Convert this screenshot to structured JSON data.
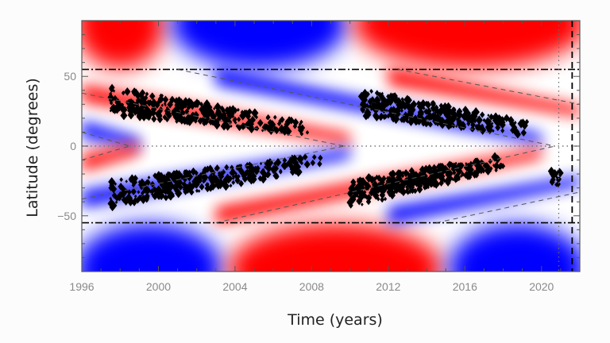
{
  "chart_data": {
    "type": "heatmap",
    "title": "",
    "xlabel": "Time (years)",
    "ylabel": "Latitude (degrees)",
    "xlim": [
      1996,
      2022
    ],
    "ylim": [
      -90,
      90
    ],
    "x_ticks": [
      1996,
      2000,
      2004,
      2008,
      2012,
      2016,
      2020
    ],
    "y_ticks": [
      50,
      0,
      -50
    ],
    "y_tick_labels": [
      "50",
      "0",
      "−50"
    ],
    "colormap": {
      "positive": "#ff0000",
      "zero": "#ffffff",
      "negative": "#0000ff"
    },
    "background_field": {
      "description": "Red/blue toroidal-field-like bands; polar caps above/below ±55°, drifting equatorward wings between",
      "north_polar_cap": [
        {
          "from": 1996,
          "to": 2000,
          "sign": "positive"
        },
        {
          "from": 2001,
          "to": 2009.5,
          "sign": "negative"
        },
        {
          "from": 2010.5,
          "to": 2022,
          "sign": "positive"
        }
      ],
      "south_polar_cap": [
        {
          "from": 1996,
          "to": 2003,
          "sign": "negative"
        },
        {
          "from": 2004,
          "to": 2014.5,
          "sign": "positive"
        },
        {
          "from": 2015.5,
          "to": 2022,
          "sign": "negative"
        }
      ],
      "bands": [
        {
          "hemisphere": "north",
          "sign": "positive",
          "start": [
            1996,
            38
          ],
          "end": [
            2010,
            5
          ]
        },
        {
          "hemisphere": "north",
          "sign": "negative",
          "start": [
            2003,
            50
          ],
          "end": [
            2020,
            5
          ]
        },
        {
          "hemisphere": "north",
          "sign": "positive",
          "start": [
            2012,
            50
          ],
          "end": [
            2022,
            25
          ]
        },
        {
          "hemisphere": "north",
          "sign": "negative",
          "start": [
            1996,
            12
          ],
          "end": [
            1999,
            2
          ]
        },
        {
          "hemisphere": "south",
          "sign": "negative",
          "start": [
            1996,
            -38
          ],
          "end": [
            2010,
            -5
          ]
        },
        {
          "hemisphere": "south",
          "sign": "positive",
          "start": [
            2003,
            -50
          ],
          "end": [
            2020,
            -5
          ]
        },
        {
          "hemisphere": "south",
          "sign": "negative",
          "start": [
            2012,
            -50
          ],
          "end": [
            2022,
            -25
          ]
        },
        {
          "hemisphere": "south",
          "sign": "positive",
          "start": [
            1996,
            -12
          ],
          "end": [
            1999,
            -2
          ]
        }
      ]
    },
    "reference_lines": [
      {
        "type": "horizontal",
        "style": "dash-dot",
        "y": 55
      },
      {
        "type": "horizontal",
        "style": "dash-dot",
        "y": -55
      },
      {
        "type": "horizontal",
        "style": "dotted",
        "y": 0
      },
      {
        "type": "vertical",
        "style": "dotted",
        "x": 2020.9
      },
      {
        "type": "vertical",
        "style": "dashed",
        "x": 2021.6
      }
    ],
    "wing_lines": [
      {
        "style": "dashed",
        "points": [
          [
            1996,
            38
          ],
          [
            2009.7,
            0
          ]
        ]
      },
      {
        "style": "dashed",
        "points": [
          [
            1996,
            -38
          ],
          [
            2009.7,
            0
          ]
        ]
      },
      {
        "style": "dashed",
        "points": [
          [
            1996,
            10
          ],
          [
            1998.5,
            0
          ]
        ]
      },
      {
        "style": "dashed",
        "points": [
          [
            1996,
            -10
          ],
          [
            1998.5,
            0
          ]
        ]
      },
      {
        "style": "dashed",
        "points": [
          [
            2001,
            55
          ],
          [
            2020.7,
            0
          ]
        ]
      },
      {
        "style": "dashed",
        "points": [
          [
            2003,
            -55
          ],
          [
            2020.7,
            0
          ]
        ]
      },
      {
        "style": "dashed",
        "points": [
          [
            2012.5,
            55
          ],
          [
            2022,
            30
          ]
        ]
      },
      {
        "style": "dashed",
        "points": [
          [
            2014.5,
            -55
          ],
          [
            2022,
            -33
          ]
        ]
      }
    ],
    "sunspot_clusters": [
      {
        "cycle": 23,
        "hemisphere": "north",
        "x_range": [
          1997.5,
          2008
        ],
        "lat_range": [
          5,
          42
        ],
        "centroid": [
          2001.5,
          18
        ]
      },
      {
        "cycle": 23,
        "hemisphere": "south",
        "x_range": [
          1997.5,
          2008.5
        ],
        "lat_range": [
          -45,
          -3
        ],
        "centroid": [
          2002,
          -18
        ]
      },
      {
        "cycle": 24,
        "hemisphere": "north",
        "x_range": [
          2010.5,
          2019.5
        ],
        "lat_range": [
          5,
          40
        ],
        "centroid": [
          2013.5,
          16
        ]
      },
      {
        "cycle": 24,
        "hemisphere": "south",
        "x_range": [
          2010,
          2018
        ],
        "lat_range": [
          -45,
          -3
        ],
        "centroid": [
          2014,
          -17
        ]
      },
      {
        "cycle": 25,
        "hemisphere": "south",
        "x_range": [
          2020.5,
          2021
        ],
        "lat_range": [
          -28,
          -18
        ],
        "centroid": [
          2020.8,
          -22
        ]
      }
    ]
  }
}
